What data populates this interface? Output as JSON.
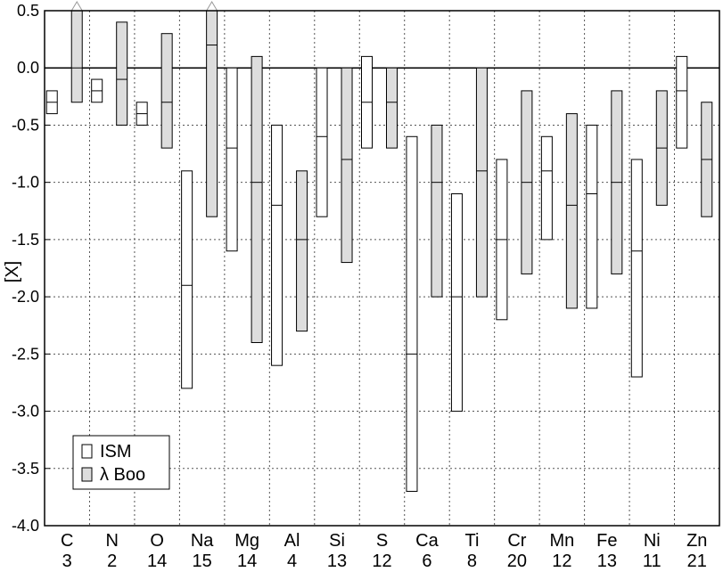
{
  "chart_data": {
    "type": "box-range",
    "title": "",
    "xlabel": "",
    "ylabel": "[X]",
    "ylim": [
      -4.0,
      0.5
    ],
    "yticks": [
      "0.5",
      "0.0",
      "-0.5",
      "-1.0",
      "-1.5",
      "-2.0",
      "-2.5",
      "-3.0",
      "-3.5",
      "-4.0"
    ],
    "grid": true,
    "legend_position": "bottom-left",
    "categories": [
      {
        "element": "C",
        "count": "3"
      },
      {
        "element": "N",
        "count": "2"
      },
      {
        "element": "O",
        "count": "14"
      },
      {
        "element": "Na",
        "count": "15"
      },
      {
        "element": "Mg",
        "count": "14"
      },
      {
        "element": "Al",
        "count": "4"
      },
      {
        "element": "Si",
        "count": "13"
      },
      {
        "element": "S",
        "count": "12"
      },
      {
        "element": "Ca",
        "count": "6"
      },
      {
        "element": "Ti",
        "count": "8"
      },
      {
        "element": "Cr",
        "count": "20"
      },
      {
        "element": "Mn",
        "count": "12"
      },
      {
        "element": "Fe",
        "count": "13"
      },
      {
        "element": "Ni",
        "count": "11"
      },
      {
        "element": "Zn",
        "count": "21"
      }
    ],
    "series": [
      {
        "name": "ISM",
        "color": "#ffffff",
        "ranges": [
          [
            -0.4,
            -0.3,
            -0.2
          ],
          [
            -0.3,
            -0.2,
            -0.1
          ],
          [
            -0.5,
            -0.4,
            -0.3
          ],
          [
            -2.8,
            -1.9,
            -0.9
          ],
          [
            -1.6,
            -0.7,
            0.0
          ],
          [
            -2.6,
            -1.2,
            -0.5
          ],
          [
            -1.3,
            -0.6,
            0.0
          ],
          [
            -0.7,
            -0.3,
            0.1
          ],
          [
            -3.7,
            -2.5,
            -0.6
          ],
          [
            -3.0,
            -2.0,
            -1.1
          ],
          [
            -2.2,
            -1.5,
            -0.8
          ],
          [
            -1.5,
            -0.9,
            -0.6
          ],
          [
            -2.1,
            -1.1,
            -0.5
          ],
          [
            -2.7,
            -1.6,
            -0.8
          ],
          [
            -0.7,
            -0.2,
            0.1
          ]
        ]
      },
      {
        "name": "λ Boo",
        "color": "#dddddd",
        "ranges": [
          [
            -0.3,
            0.0,
            0.5
          ],
          [
            -0.5,
            -0.1,
            0.4
          ],
          [
            -0.7,
            -0.3,
            0.3
          ],
          [
            -1.3,
            0.2,
            0.5
          ],
          [
            -2.4,
            -1.0,
            0.1
          ],
          [
            -2.3,
            -1.5,
            -0.9
          ],
          [
            -1.7,
            -0.8,
            0.0
          ],
          [
            -0.7,
            -0.3,
            0.0
          ],
          [
            -2.0,
            -1.0,
            -0.5
          ],
          [
            -2.0,
            -0.9,
            0.0
          ],
          [
            -1.8,
            -1.0,
            -0.2
          ],
          [
            -2.1,
            -1.2,
            -0.4
          ],
          [
            -1.8,
            -1.0,
            -0.2
          ],
          [
            -1.2,
            -0.7,
            -0.2
          ],
          [
            -1.3,
            -0.8,
            -0.3
          ]
        ]
      }
    ]
  }
}
